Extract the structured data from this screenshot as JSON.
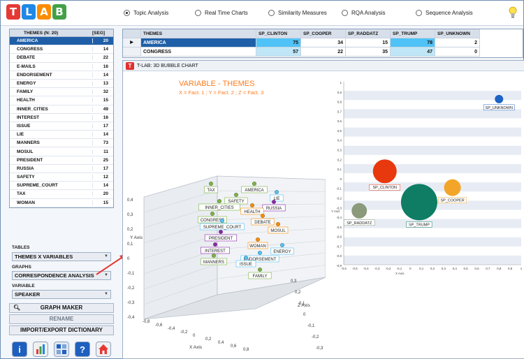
{
  "logo": {
    "letters": [
      "T",
      "L",
      "A",
      "B"
    ],
    "colors": [
      "#e53935",
      "#1e88e5",
      "#fb8c00",
      "#43a047"
    ]
  },
  "top_options": [
    {
      "label": "Topic Analysis",
      "selected": true
    },
    {
      "label": "Real Time Charts",
      "selected": false
    },
    {
      "label": "Similarity Measures",
      "selected": false
    },
    {
      "label": "RQA Analysis",
      "selected": false
    },
    {
      "label": "Sequence Analysis",
      "selected": false
    }
  ],
  "themes_table": {
    "header_themes": "THEMES (N: 20)",
    "header_seg": "[SEG]",
    "rows": [
      {
        "name": "AMERICA",
        "count": "20",
        "selected": true
      },
      {
        "name": "CONGRESS",
        "count": "14"
      },
      {
        "name": "DEBATE",
        "count": "22"
      },
      {
        "name": "E-MAILS",
        "count": "16"
      },
      {
        "name": "ENDORSEMENT",
        "count": "14"
      },
      {
        "name": "ENERGY",
        "count": "13"
      },
      {
        "name": "FAMILY",
        "count": "32"
      },
      {
        "name": "HEALTH",
        "count": "15"
      },
      {
        "name": "INNER_CITIES",
        "count": "49"
      },
      {
        "name": "INTEREST",
        "count": "16"
      },
      {
        "name": "ISSUE",
        "count": "17"
      },
      {
        "name": "LIE",
        "count": "14"
      },
      {
        "name": "MANNERS",
        "count": "73"
      },
      {
        "name": "MOSUL",
        "count": "11"
      },
      {
        "name": "PRESIDENT",
        "count": "25"
      },
      {
        "name": "RUSSIA",
        "count": "17"
      },
      {
        "name": "SAFETY",
        "count": "12"
      },
      {
        "name": "SUPREME_COURT",
        "count": "14"
      },
      {
        "name": "TAX",
        "count": "20"
      },
      {
        "name": "WOMAN",
        "count": "15"
      }
    ]
  },
  "controls": {
    "tables_label": "TABLES",
    "tables_value": "THEMES X VARIABLES",
    "graphs_label": "GRAPHS",
    "graphs_value": "CORRESPONDENCE ANALYSIS",
    "variable_label": "VARIABLE",
    "variable_value": "SPEAKER",
    "graph_maker": "GRAPH MAKER",
    "rename": "RENAME",
    "import_export": "IMPORT/EXPORT DICTIONARY"
  },
  "bottom_icons": [
    "info-icon",
    "bar-chart-icon",
    "grid-icon",
    "help-icon",
    "home-icon"
  ],
  "grid": {
    "headers": [
      "THEMES",
      "SP_CLINTON",
      "SP_COOPER",
      "SP_RADDATZ",
      "SP_TRUMP",
      "SP_UNKNOWN"
    ],
    "rows": [
      {
        "theme": "AMERICA",
        "values": [
          "75",
          "34",
          "15",
          "78",
          "2"
        ],
        "selected": true
      },
      {
        "theme": "CONGRESS",
        "values": [
          "57",
          "22",
          "35",
          "47",
          "0"
        ],
        "selected": false
      }
    ]
  },
  "chart_window": {
    "title": "T-LAB: 3D BUBBLE CHART",
    "chart_title": "VARIABLE  - THEMES",
    "chart_subtitle": "X = Fact. 1 ; Y = Fact. 2 ; Z = Fact. 3",
    "x_axis_label": "X Axis",
    "y_axis_label": "Y Axis",
    "z_axis_label": "Z Axis"
  },
  "chart_data": [
    {
      "type": "scatter",
      "title": "VARIABLE  - THEMES",
      "subtitle": "X = Fact. 1 ; Y = Fact. 2 ; Z = Fact. 3",
      "xlabel": "X Axis",
      "ylabel": "Y Axis",
      "zlabel": "Z Axis",
      "y_ticks": [
        "0,4",
        "0,3",
        "0,2",
        "0,1",
        "0",
        "-0,1",
        "-0,2",
        "-0,3",
        "-0,4"
      ],
      "x_ticks": [
        "-0,8",
        "-0,6",
        "-0,4",
        "-0,2",
        "0",
        "0,2",
        "0,4",
        "0,6",
        "0,8"
      ],
      "z_ticks": [
        "0,3",
        "0,2",
        "0,1",
        "0",
        "-0,1",
        "-0,2",
        "-0,3"
      ],
      "points": [
        {
          "label": "TAX",
          "color": "#7cb342"
        },
        {
          "label": "AMERICA",
          "color": "#7cb342"
        },
        {
          "label": "SAFETY",
          "color": "#7cb342"
        },
        {
          "label": "INNER_CITIES",
          "color": "#7cb342"
        },
        {
          "label": "LIE",
          "color": "#4fc3f7"
        },
        {
          "label": "RUSSIA",
          "color": "#8e24aa"
        },
        {
          "label": "HEALTH",
          "color": "#fb8c00"
        },
        {
          "label": "CONGRESS",
          "color": "#7cb342"
        },
        {
          "label": "DEBATE",
          "color": "#fb8c00"
        },
        {
          "label": "SUPREME_COURT",
          "color": "#4fc3f7"
        },
        {
          "label": "MOSUL",
          "color": "#fb8c00"
        },
        {
          "label": "PRESIDENT",
          "color": "#8e24aa"
        },
        {
          "label": "WOMAN",
          "color": "#fb8c00"
        },
        {
          "label": "ENERGY",
          "color": "#4fc3f7"
        },
        {
          "label": "INTEREST",
          "color": "#8e24aa"
        },
        {
          "label": "ENDORSEMENT",
          "color": "#4fc3f7"
        },
        {
          "label": "MANNERS",
          "color": "#7cb342"
        },
        {
          "label": "ISSUE",
          "color": "#4fc3f7"
        },
        {
          "label": "FAMILY",
          "color": "#7cb342"
        }
      ]
    },
    {
      "type": "scatter",
      "xlabel": "X Axis",
      "ylabel": "Y Axis",
      "x_ticks": [
        "-0,6",
        "-0,5",
        "-0,4",
        "-0,3",
        "-0,2",
        "-0,1",
        "0",
        "0,1",
        "0,2",
        "0,3",
        "0,4",
        "0,5",
        "0,6",
        "0,7",
        "0,8",
        "0,9",
        "1"
      ],
      "y_ticks": [
        "1",
        "0,9",
        "0,8",
        "0,7",
        "0,6",
        "0,5",
        "0,4",
        "0,3",
        "0,2",
        "0,1",
        "0",
        "-0,1",
        "-0,2",
        "-0,3",
        "-0,4",
        "-0,5",
        "-0,6",
        "-0,7",
        "-0,8",
        "-0,9"
      ],
      "xlim": [
        -0.6,
        1
      ],
      "ylim": [
        -0.9,
        1
      ],
      "bubbles": [
        {
          "label": "SP_UNKNOWN",
          "x": 0.8,
          "y": 0.82,
          "color": "#1e63c6"
        },
        {
          "label": "SP_CLINTON",
          "x": -0.23,
          "y": 0.07,
          "color": "#e8380d"
        },
        {
          "label": "SP_COOPER",
          "x": 0.38,
          "y": -0.1,
          "color": "#f2a528"
        },
        {
          "label": "SP_RADDATZ",
          "x": -0.46,
          "y": -0.34,
          "color": "#8a9a7a"
        },
        {
          "label": "SP_TRUMP",
          "x": 0.08,
          "y": -0.25,
          "color": "#0e7d63"
        }
      ]
    }
  ]
}
